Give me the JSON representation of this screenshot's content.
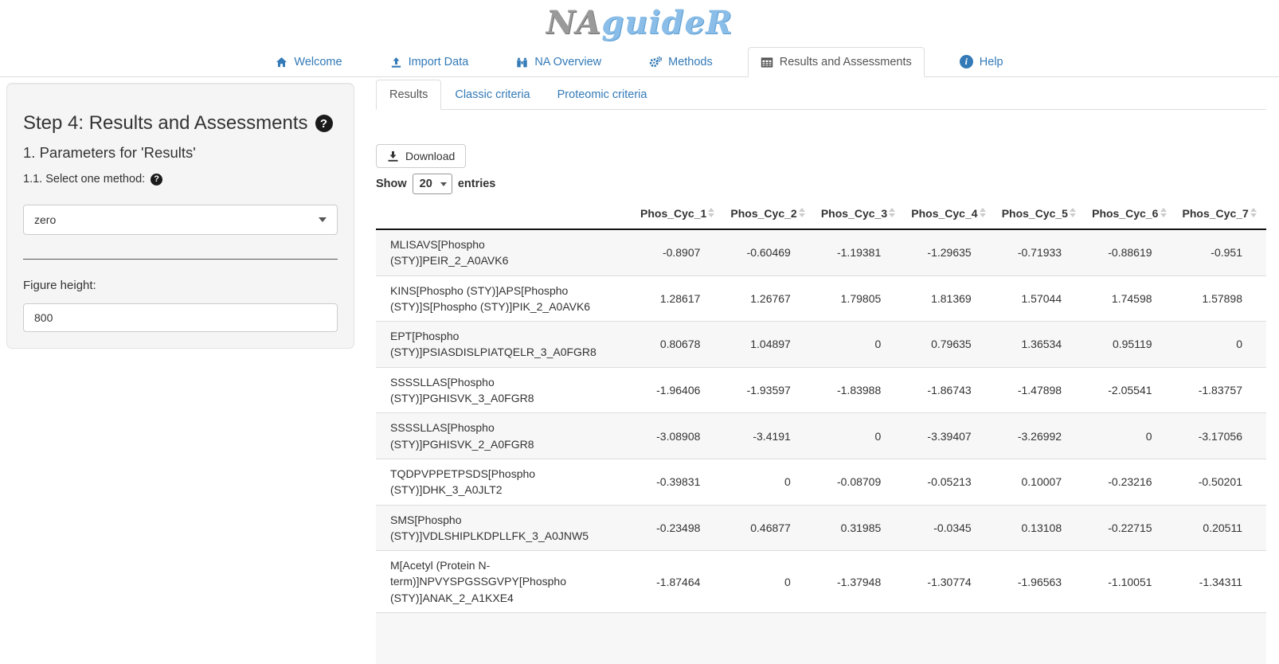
{
  "logo": {
    "text_gray": "NA",
    "text_blue": "guideR"
  },
  "colors": {
    "link_blue": "#337ab7",
    "active_tab_text": "#555555",
    "logo_gray": "#9a9a9a",
    "logo_blue": "#8abde8",
    "table_border": "#dddddd",
    "row_stripe": "#f7f7f7",
    "panel_bg": "#f5f5f5"
  },
  "nav": {
    "items": [
      {
        "label": "Welcome",
        "icon": "home-icon",
        "active": false
      },
      {
        "label": "Import Data",
        "icon": "upload-icon",
        "active": false
      },
      {
        "label": "NA Overview",
        "icon": "binoculars-icon",
        "active": false
      },
      {
        "label": "Methods",
        "icon": "gears-icon",
        "active": false
      },
      {
        "label": "Results and Assessments",
        "icon": "table-icon",
        "active": true
      },
      {
        "label": "Help",
        "icon": "info-circle-icon",
        "active": false
      }
    ]
  },
  "sidebar": {
    "title": "Step 4: Results and Assessments",
    "title_help_icon": "question-circle-icon",
    "subtitle": "1. Parameters for 'Results'",
    "method_label": "1.1. Select one method:",
    "method_help_icon": "question-circle-icon",
    "method_value": "zero",
    "figure_height_label": "Figure height:",
    "figure_height_value": "800"
  },
  "main": {
    "tabs": [
      {
        "label": "Results",
        "active": true
      },
      {
        "label": "Classic criteria",
        "active": false
      },
      {
        "label": "Proteomic criteria",
        "active": false
      }
    ],
    "download_label": "Download",
    "show_entries": {
      "show": "Show",
      "page_length": "20",
      "entries": "entries"
    },
    "table": {
      "columns": [
        "Phos_Cyc_1",
        "Phos_Cyc_2",
        "Phos_Cyc_3",
        "Phos_Cyc_4",
        "Phos_Cyc_5",
        "Phos_Cyc_6",
        "Phos_Cyc_7"
      ],
      "rows": [
        {
          "name": "MLISAVS[Phospho\n(STY)]PEIR_2_A0AVK6",
          "values": [
            "-0.8907",
            "-0.60469",
            "-1.19381",
            "-1.29635",
            "-0.71933",
            "-0.88619",
            "-0.951"
          ]
        },
        {
          "name": "KINS[Phospho (STY)]APS[Phospho\n(STY)]S[Phospho (STY)]PIK_2_A0AVK6",
          "values": [
            "1.28617",
            "1.26767",
            "1.79805",
            "1.81369",
            "1.57044",
            "1.74598",
            "1.57898"
          ]
        },
        {
          "name": "EPT[Phospho\n(STY)]PSIASDISLPIATQELR_3_A0FGR8",
          "values": [
            "0.80678",
            "1.04897",
            "0",
            "0.79635",
            "1.36534",
            "0.95119",
            "0"
          ]
        },
        {
          "name": "SSSSLLAS[Phospho\n(STY)]PGHISVK_3_A0FGR8",
          "values": [
            "-1.96406",
            "-1.93597",
            "-1.83988",
            "-1.86743",
            "-1.47898",
            "-2.05541",
            "-1.83757"
          ]
        },
        {
          "name": "SSSSLLAS[Phospho\n(STY)]PGHISVK_2_A0FGR8",
          "values": [
            "-3.08908",
            "-3.4191",
            "0",
            "-3.39407",
            "-3.26992",
            "0",
            "-3.17056"
          ]
        },
        {
          "name": "TQDPVPPETPSDS[Phospho\n(STY)]DHK_3_A0JLT2",
          "values": [
            "-0.39831",
            "0",
            "-0.08709",
            "-0.05213",
            "0.10007",
            "-0.23216",
            "-0.50201"
          ]
        },
        {
          "name": "SMS[Phospho\n(STY)]VDLSHIPLKDPLLFK_3_A0JNW5",
          "values": [
            "-0.23498",
            "0.46877",
            "0.31985",
            "-0.0345",
            "0.13108",
            "-0.22715",
            "0.20511"
          ]
        },
        {
          "name": "M[Acetyl (Protein N-\nterm)]NPVYSPGSSGVPY[Phospho\n(STY)]ANAK_2_A1KXE4",
          "values": [
            "-1.87464",
            "0",
            "-1.37948",
            "-1.30774",
            "-1.96563",
            "-1.10051",
            "-1.34311"
          ]
        }
      ]
    }
  }
}
